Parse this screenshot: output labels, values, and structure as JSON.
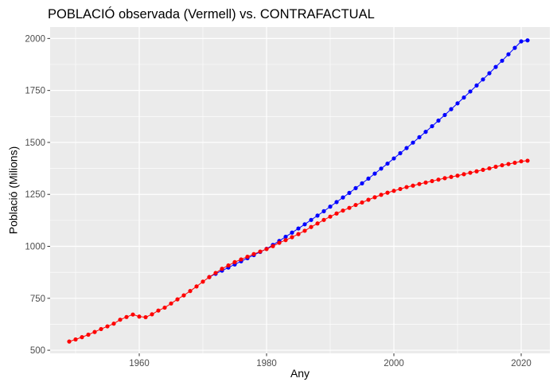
{
  "chart_data": {
    "type": "line",
    "title": "POBLACIÓ observada (Vermell) vs. CONTRAFACTUAL",
    "xlabel": "Any",
    "ylabel": "Població (Milions)",
    "xlim": [
      1946,
      2024.5
    ],
    "ylim": [
      485,
      2055
    ],
    "x_ticks": [
      1960,
      1980,
      2000,
      2020
    ],
    "y_ticks": [
      500,
      750,
      1000,
      1250,
      1500,
      1750,
      2000
    ],
    "x_tick_labels": [
      "1960",
      "1980",
      "2000",
      "2020"
    ],
    "y_tick_labels": [
      "500",
      "750",
      "1000",
      "1250",
      "1500",
      "1750",
      "2000"
    ],
    "grid": true,
    "series": [
      {
        "color": "#0000ff",
        "x": [
          1971,
          1972,
          1973,
          1974,
          1975,
          1976,
          1977,
          1978,
          1979,
          1980,
          1981,
          1982,
          1983,
          1984,
          1985,
          1986,
          1987,
          1988,
          1989,
          1990,
          1991,
          1992,
          1993,
          1994,
          1995,
          1996,
          1997,
          1998,
          1999,
          2000,
          2001,
          2002,
          2003,
          2004,
          2005,
          2006,
          2007,
          2008,
          2009,
          2010,
          2011,
          2012,
          2013,
          2014,
          2015,
          2016,
          2017,
          2018,
          2019,
          2020,
          2021
        ],
        "y": [
          852,
          868,
          883,
          898,
          913,
          928,
          943,
          958,
          973,
          988,
          1007,
          1026,
          1046,
          1066,
          1086,
          1106,
          1127,
          1148,
          1169,
          1191,
          1213,
          1235,
          1257,
          1280,
          1303,
          1326,
          1350,
          1374,
          1398,
          1423,
          1448,
          1473,
          1499,
          1525,
          1551,
          1578,
          1605,
          1632,
          1660,
          1688,
          1716,
          1745,
          1774,
          1803,
          1833,
          1863,
          1893,
          1924,
          1955,
          1986,
          1991
        ]
      },
      {
        "color": "#ff0000",
        "x": [
          1949,
          1950,
          1951,
          1952,
          1953,
          1954,
          1955,
          1956,
          1957,
          1958,
          1959,
          1960,
          1961,
          1962,
          1963,
          1964,
          1965,
          1966,
          1967,
          1968,
          1969,
          1970,
          1971,
          1972,
          1973,
          1974,
          1975,
          1976,
          1977,
          1978,
          1979,
          1980,
          1981,
          1982,
          1983,
          1984,
          1985,
          1986,
          1987,
          1988,
          1989,
          1990,
          1991,
          1992,
          1993,
          1994,
          1995,
          1996,
          1997,
          1998,
          1999,
          2000,
          2001,
          2002,
          2003,
          2004,
          2005,
          2006,
          2007,
          2008,
          2009,
          2010,
          2011,
          2012,
          2013,
          2014,
          2015,
          2016,
          2017,
          2018,
          2019,
          2020,
          2021
        ],
        "y": [
          542,
          552,
          563,
          575,
          588,
          602,
          615,
          628,
          647,
          660,
          672,
          662,
          659,
          673,
          691,
          705,
          725,
          745,
          764,
          785,
          807,
          830,
          852,
          872,
          892,
          908,
          924,
          937,
          950,
          963,
          975,
          987,
          1001,
          1017,
          1030,
          1044,
          1059,
          1075,
          1093,
          1110,
          1127,
          1143,
          1158,
          1172,
          1185,
          1199,
          1211,
          1224,
          1236,
          1248,
          1258,
          1267,
          1276,
          1285,
          1292,
          1300,
          1307,
          1314,
          1321,
          1328,
          1334,
          1340,
          1347,
          1354,
          1361,
          1368,
          1375,
          1383,
          1390,
          1396,
          1402,
          1409,
          1412
        ]
      }
    ]
  }
}
